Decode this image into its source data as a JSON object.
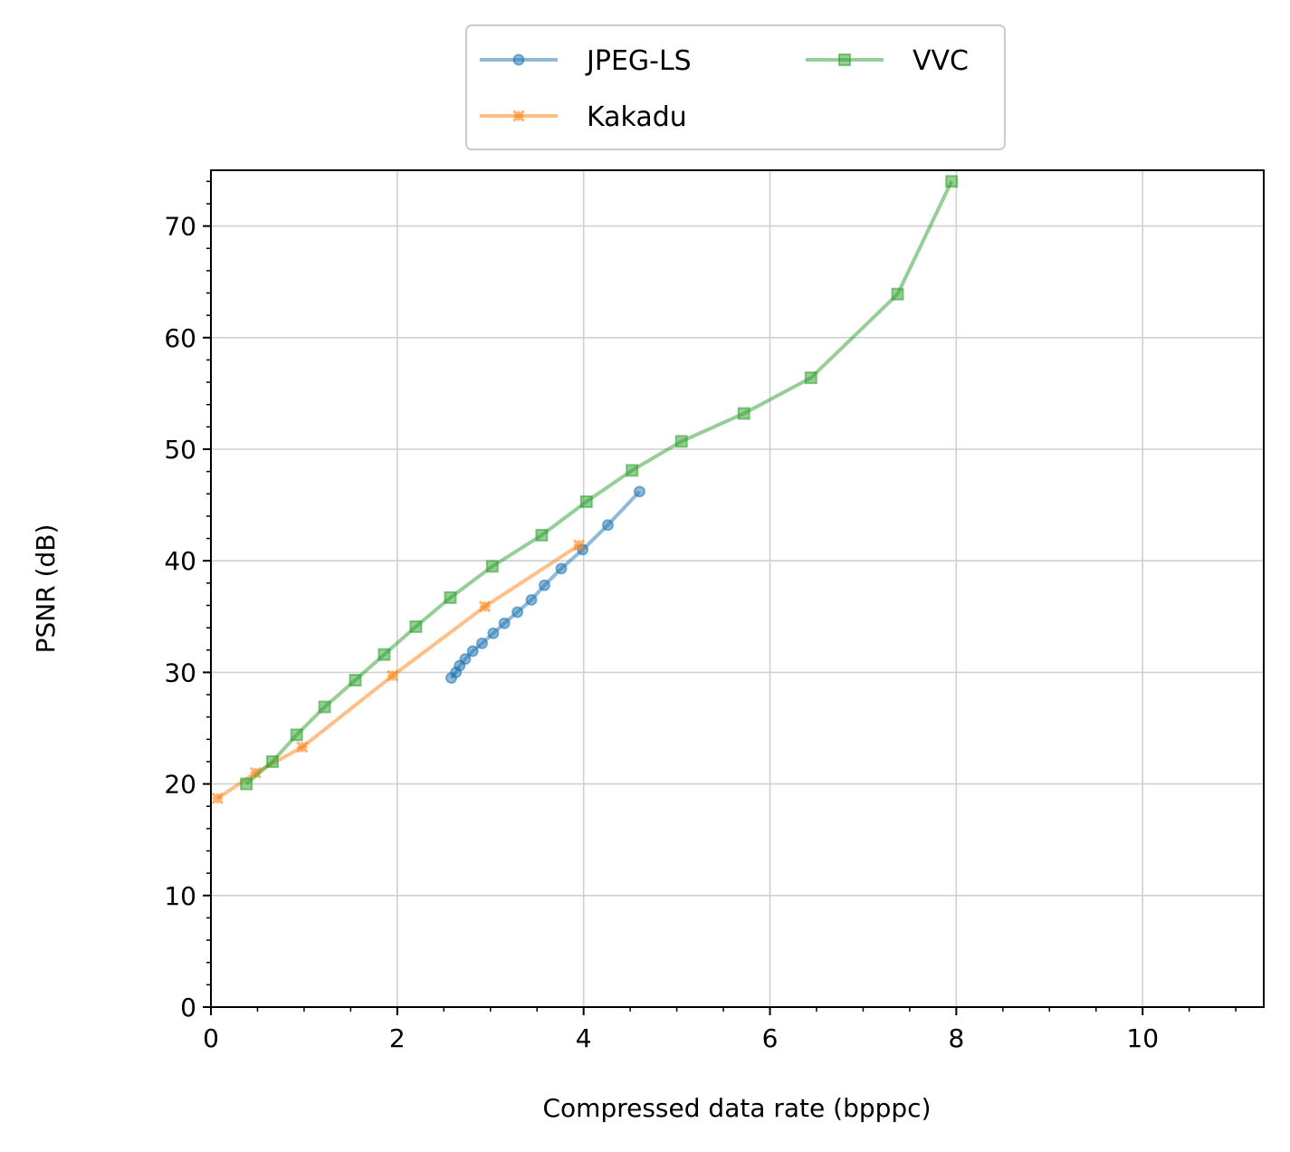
{
  "chart_data": {
    "type": "line",
    "xlabel": "Compressed data rate (bpppc)",
    "ylabel": "PSNR (dB)",
    "xlim": [
      0,
      11.3
    ],
    "ylim": [
      0,
      75
    ],
    "xticks": [
      0,
      2,
      4,
      6,
      8,
      10
    ],
    "yticks": [
      0,
      10,
      20,
      30,
      40,
      50,
      60,
      70
    ],
    "grid": true,
    "legend_position": "top-center",
    "series": [
      {
        "name": "JPEG-LS",
        "color": "#1f77b4",
        "marker": "circle",
        "x": [
          2.58,
          2.63,
          2.67,
          2.73,
          2.81,
          2.91,
          3.03,
          3.15,
          3.29,
          3.44,
          3.58,
          3.76,
          3.99,
          4.26,
          4.6
        ],
        "y": [
          29.5,
          30.0,
          30.6,
          31.2,
          31.9,
          32.6,
          33.5,
          34.4,
          35.4,
          36.5,
          37.8,
          39.3,
          41.0,
          43.2,
          46.2
        ]
      },
      {
        "name": "Kakadu",
        "color": "#ff7f0e",
        "marker": "x",
        "x": [
          0.07,
          0.48,
          0.98,
          1.95,
          2.94,
          3.95
        ],
        "y": [
          18.7,
          21.0,
          23.3,
          29.7,
          35.9,
          41.4
        ]
      },
      {
        "name": "VVC",
        "color": "#2ca02c",
        "marker": "square",
        "x": [
          0.38,
          0.66,
          0.92,
          1.22,
          1.55,
          1.86,
          2.2,
          2.57,
          3.02,
          3.55,
          4.03,
          4.52,
          5.05,
          5.72,
          6.44,
          7.37,
          7.95
        ],
        "y": [
          20.0,
          22.0,
          24.4,
          26.9,
          29.3,
          31.6,
          34.1,
          36.7,
          39.5,
          42.3,
          45.3,
          48.1,
          50.7,
          53.2,
          56.4,
          63.9,
          74.0
        ]
      }
    ]
  }
}
